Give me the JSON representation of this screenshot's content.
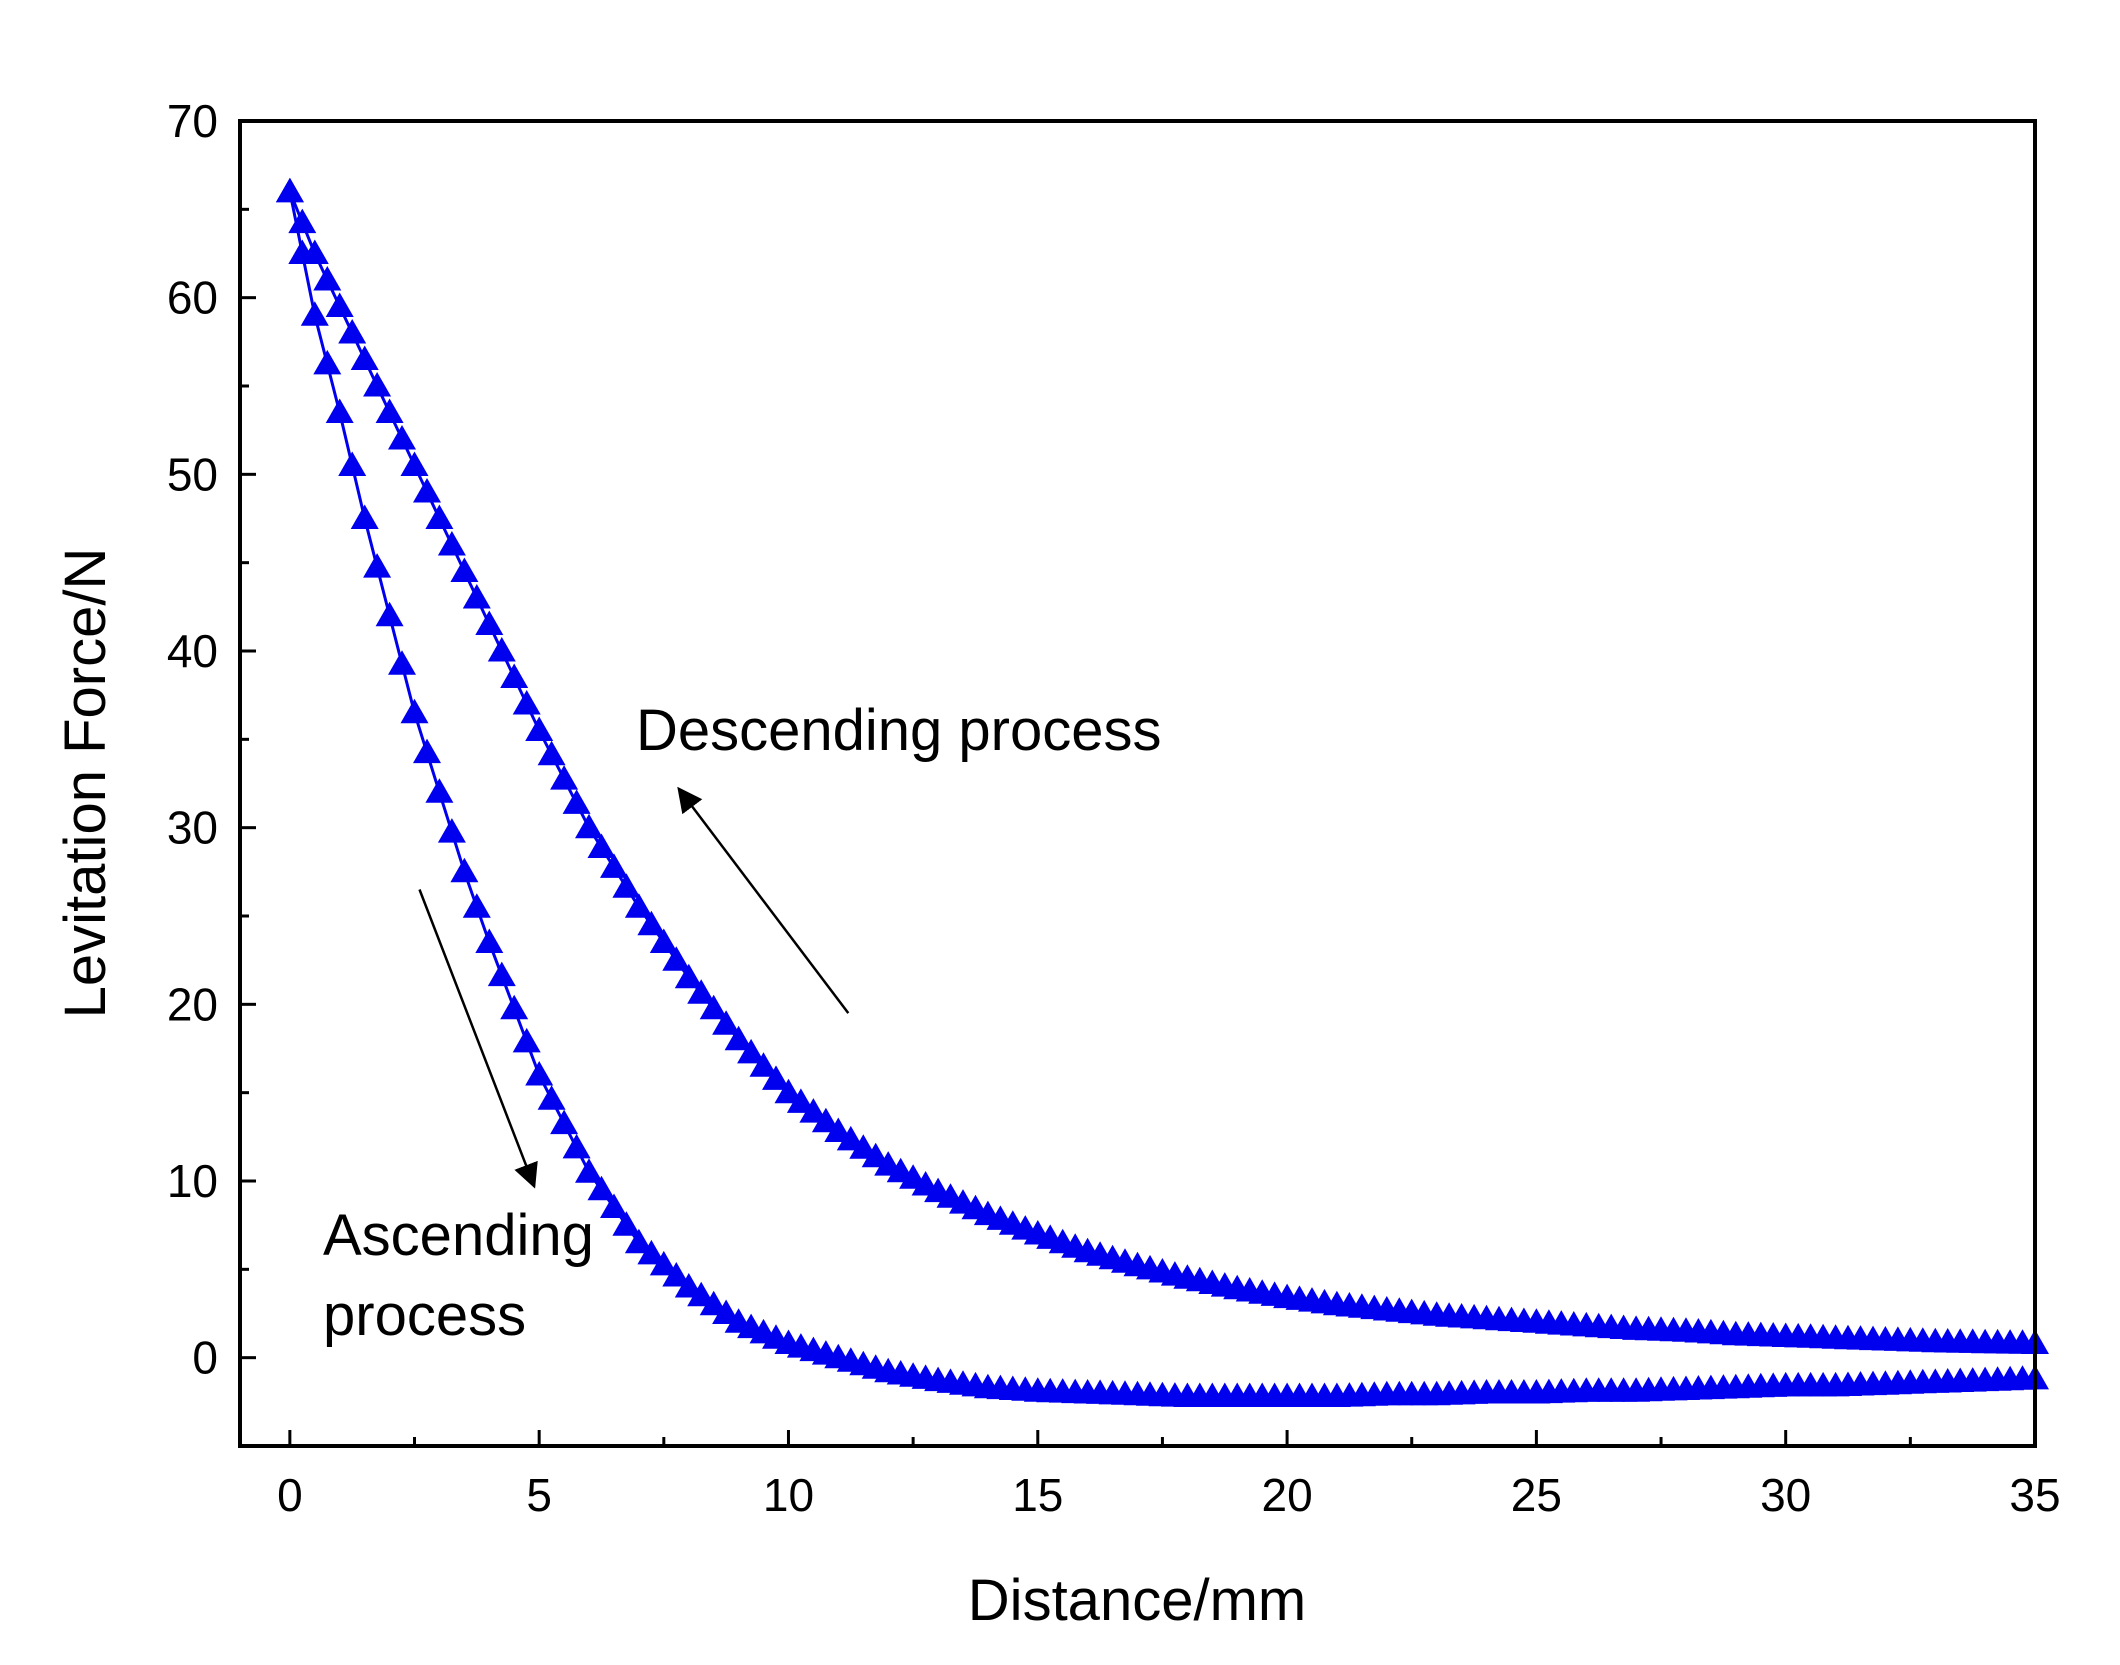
{
  "chart_data": {
    "type": "scatter",
    "title": "",
    "xlabel": "Distance/mm",
    "ylabel": "Levitation Force/N",
    "xlim": [
      -1,
      35
    ],
    "ylim": [
      -5,
      70
    ],
    "xticks": [
      0,
      5,
      10,
      15,
      20,
      25,
      30,
      35
    ],
    "xtick_labels": [
      "0",
      "5",
      "10",
      "15",
      "20",
      "25",
      "30",
      "35"
    ],
    "yticks": [
      0,
      10,
      20,
      30,
      40,
      50,
      60,
      70
    ],
    "ytick_labels": [
      "0",
      "10",
      "20",
      "30",
      "40",
      "50",
      "60",
      "70"
    ],
    "grid": false,
    "marker": "triangle-up",
    "colors": {
      "series": "#0000ee",
      "axis": "#000000",
      "arrow": "#000000"
    },
    "series": [
      {
        "name": "Descending process",
        "x": [
          0,
          0.5,
          1,
          1.5,
          2,
          2.5,
          3,
          3.5,
          4,
          5,
          6,
          7,
          8,
          9,
          10,
          11,
          12,
          13,
          14,
          15,
          16,
          17,
          18,
          19,
          20,
          21,
          22,
          23,
          24,
          25,
          26,
          27,
          28,
          29,
          30,
          31,
          32,
          33,
          34,
          35
        ],
        "y": [
          66,
          62.5,
          59.5,
          56.5,
          53.5,
          50.5,
          47.5,
          44.5,
          41.5,
          35.5,
          30,
          25.5,
          21.5,
          18,
          15,
          12.8,
          10.9,
          9.4,
          8.1,
          7.0,
          6.0,
          5.2,
          4.5,
          3.9,
          3.4,
          3.0,
          2.7,
          2.4,
          2.2,
          2.0,
          1.8,
          1.6,
          1.5,
          1.3,
          1.2,
          1.1,
          1.0,
          0.9,
          0.85,
          0.8
        ]
      },
      {
        "name": "Ascending process",
        "x": [
          0,
          0.5,
          1,
          1.5,
          2,
          2.5,
          3,
          3.5,
          4,
          5,
          6,
          7,
          8,
          9,
          10,
          11,
          12,
          13,
          14,
          15,
          16,
          17,
          18,
          19,
          20,
          21,
          22,
          23,
          24,
          25,
          26,
          27,
          28,
          29,
          30,
          31,
          32,
          33,
          34,
          35
        ],
        "y": [
          66,
          59,
          53.5,
          47.5,
          42,
          36.5,
          32,
          27.5,
          23.5,
          16,
          10.5,
          6.5,
          4,
          2,
          0.8,
          0,
          -0.8,
          -1.3,
          -1.7,
          -1.9,
          -2.0,
          -2.1,
          -2.2,
          -2.2,
          -2.2,
          -2.2,
          -2.1,
          -2.1,
          -2.0,
          -2.0,
          -1.9,
          -1.9,
          -1.8,
          -1.7,
          -1.6,
          -1.6,
          -1.5,
          -1.4,
          -1.3,
          -1.2
        ]
      }
    ],
    "annotations": [
      {
        "text": "Descending process",
        "arrow_from": [
          11.2,
          19.5
        ],
        "arrow_to": [
          7.8,
          32.2
        ]
      },
      {
        "lines": [
          "Ascending",
          "process"
        ],
        "arrow_from": [
          2.6,
          26.5
        ],
        "arrow_to": [
          4.9,
          9.7
        ]
      }
    ]
  }
}
